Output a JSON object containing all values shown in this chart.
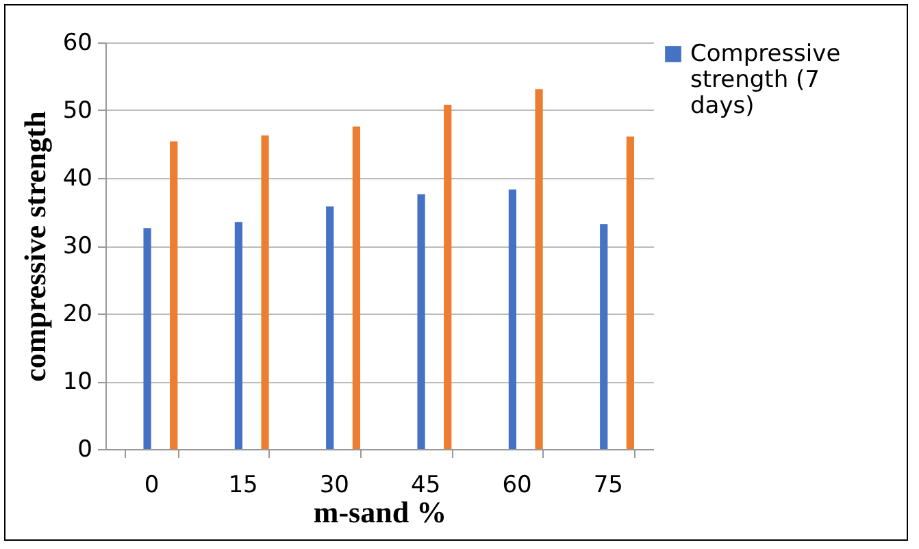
{
  "chart_data": {
    "type": "bar",
    "xlabel": "m-sand %",
    "ylabel": "compressive strength",
    "categories": [
      "0",
      "15",
      "30",
      "45",
      "60",
      "75"
    ],
    "series": [
      {
        "name": "Compressive strength (7 days)",
        "color": "#4472c4",
        "values": [
          32.6,
          33.5,
          35.8,
          37.6,
          38.3,
          33.2
        ]
      },
      {
        "color": "#ed7d31",
        "values": [
          45.4,
          46.3,
          47.6,
          50.8,
          53.1,
          46.1
        ]
      }
    ],
    "ylim": [
      0,
      60
    ],
    "yticks": [
      0,
      10,
      20,
      30,
      40,
      50,
      60
    ],
    "grid": "y",
    "legend": "right"
  }
}
